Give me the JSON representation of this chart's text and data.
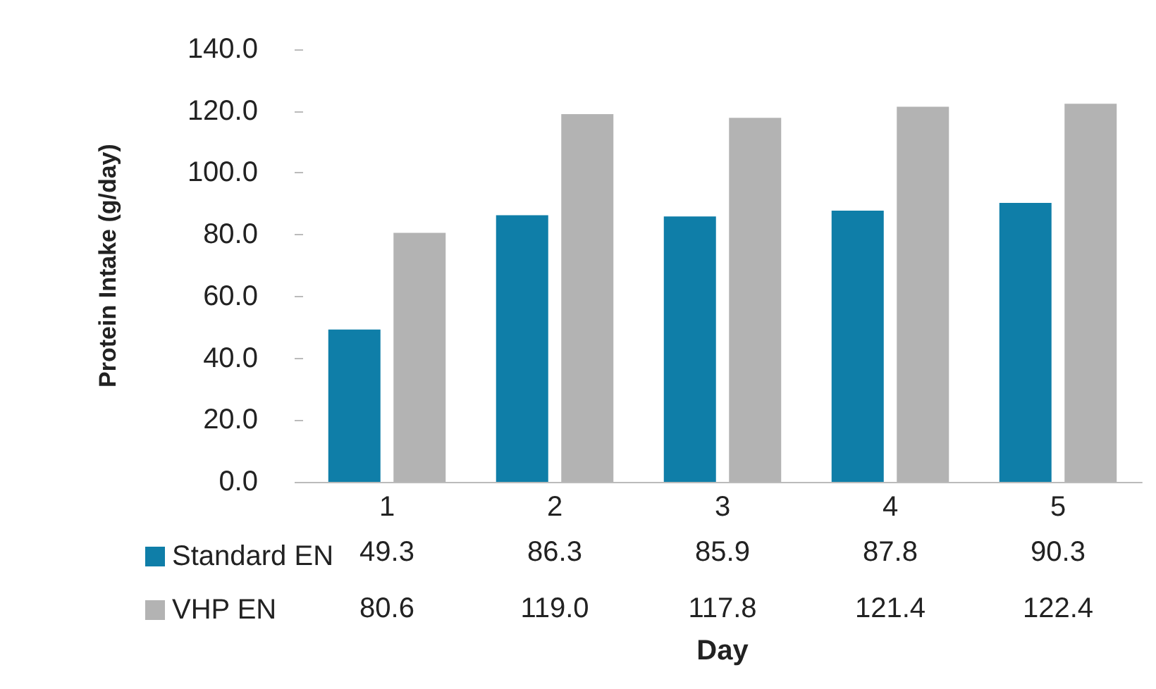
{
  "chart_data": {
    "type": "bar",
    "xlabel": "Day",
    "ylabel": "Protein Intake (g/day)",
    "categories": [
      "1",
      "2",
      "3",
      "4",
      "5"
    ],
    "series": [
      {
        "name": "Standard EN",
        "color": "#0f7ea8",
        "values": [
          49.3,
          86.3,
          85.9,
          87.8,
          90.3
        ],
        "value_labels": [
          "49.3",
          "86.3",
          "85.9",
          "87.8",
          "90.3"
        ]
      },
      {
        "name": "VHP EN",
        "color": "#b3b3b3",
        "values": [
          80.6,
          119.0,
          117.8,
          121.4,
          122.4
        ],
        "value_labels": [
          "80.6",
          "119.0",
          "117.8",
          "121.4",
          "122.4"
        ]
      }
    ],
    "ylim": [
      0,
      140
    ],
    "yticks": [
      {
        "value": 0,
        "label": "0.0"
      },
      {
        "value": 20,
        "label": "20.0"
      },
      {
        "value": 40,
        "label": "40.0"
      },
      {
        "value": 60,
        "label": "60.0"
      },
      {
        "value": 80,
        "label": "80.0"
      },
      {
        "value": 100,
        "label": "100.0"
      },
      {
        "value": 120,
        "label": "120.0"
      },
      {
        "value": 140,
        "label": "140.0"
      }
    ],
    "grid": false,
    "legend": "bottom left"
  }
}
